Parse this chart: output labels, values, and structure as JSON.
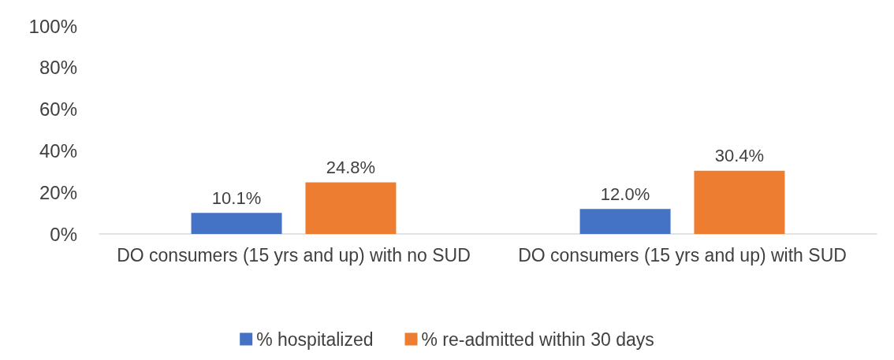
{
  "chart_data": {
    "type": "bar",
    "categories": [
      "DO consumers (15 yrs and up) with no SUD",
      "DO consumers (15 yrs and up) with SUD"
    ],
    "series": [
      {
        "name": "% hospitalized",
        "color": "#4472c4",
        "values": [
          10.1,
          12.0
        ],
        "value_labels": [
          "10.1%",
          "12.0%"
        ]
      },
      {
        "name": "% re-admitted within 30 days",
        "color": "#ed7d31",
        "values": [
          24.8,
          30.4
        ],
        "value_labels": [
          "24.8%",
          "30.4%"
        ]
      }
    ],
    "ylim": [
      0,
      100
    ],
    "yticks": [
      {
        "value": 0,
        "label": "0%"
      },
      {
        "value": 20,
        "label": "20%"
      },
      {
        "value": 40,
        "label": "40%"
      },
      {
        "value": 60,
        "label": "60%"
      },
      {
        "value": 80,
        "label": "80%"
      },
      {
        "value": 100,
        "label": "100%"
      }
    ],
    "grid": false,
    "legend": "bottom"
  }
}
